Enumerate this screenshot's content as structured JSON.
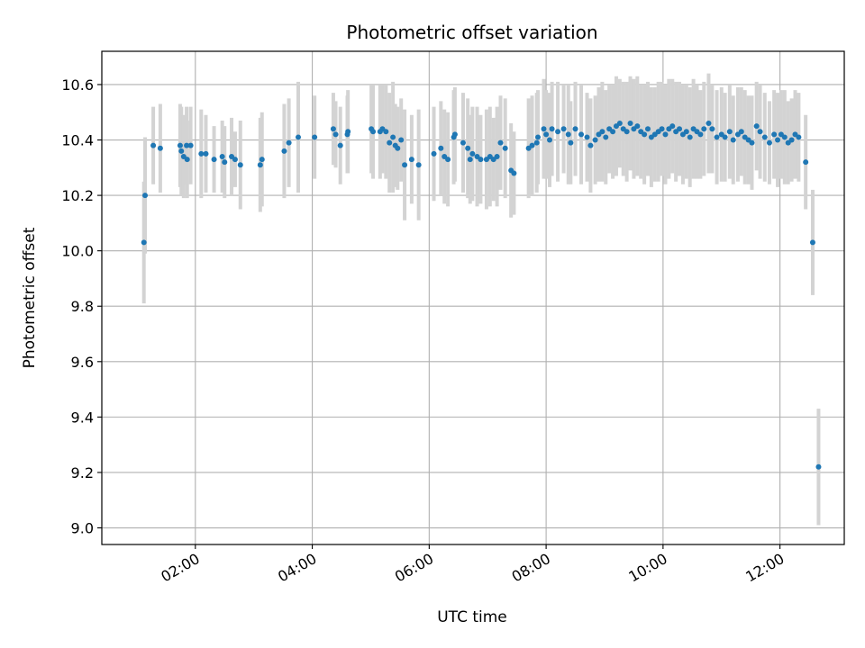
{
  "chart_data": {
    "type": "scatter",
    "title": "Photometric offset variation",
    "xlabel": "UTC time",
    "ylabel": "Photometric offset",
    "x_unit": "hours UTC",
    "xlim": [
      0.4,
      13.1
    ],
    "ylim": [
      8.94,
      10.72
    ],
    "x_ticks": [
      2,
      4,
      6,
      8,
      10,
      12
    ],
    "x_tick_labels": [
      "02:00",
      "04:00",
      "06:00",
      "08:00",
      "10:00",
      "12:00"
    ],
    "y_ticks": [
      9.0,
      9.2,
      9.4,
      9.6,
      9.8,
      10.0,
      10.2,
      10.4,
      10.6
    ],
    "y_tick_labels": [
      "9.0",
      "9.2",
      "9.4",
      "9.6",
      "9.8",
      "10.0",
      "10.2",
      "10.4",
      "10.6"
    ],
    "grid": true,
    "colors": {
      "marker": "#1f77b4",
      "errorbar": "#d3d3d3",
      "grid": "#b0b0b0"
    },
    "series": [
      {
        "points": [
          [
            1.12,
            10.03,
            0.22
          ],
          [
            1.14,
            10.2,
            0.21
          ],
          [
            1.28,
            10.38,
            0.14
          ],
          [
            1.4,
            10.37,
            0.16
          ],
          [
            1.74,
            10.38,
            0.15
          ],
          [
            1.76,
            10.36,
            0.16
          ],
          [
            1.8,
            10.34,
            0.15
          ],
          [
            1.85,
            10.38,
            0.14
          ],
          [
            1.86,
            10.33,
            0.14
          ],
          [
            1.92,
            10.38,
            0.14
          ],
          [
            2.1,
            10.35,
            0.16
          ],
          [
            2.18,
            10.35,
            0.14
          ],
          [
            2.32,
            10.33,
            0.12
          ],
          [
            2.46,
            10.34,
            0.13
          ],
          [
            2.5,
            10.32,
            0.13
          ],
          [
            2.62,
            10.34,
            0.14
          ],
          [
            2.68,
            10.33,
            0.1
          ],
          [
            2.77,
            10.31,
            0.16
          ],
          [
            3.11,
            10.31,
            0.17
          ],
          [
            3.14,
            10.33,
            0.17
          ],
          [
            3.52,
            10.36,
            0.17
          ],
          [
            3.6,
            10.39,
            0.16
          ],
          [
            3.76,
            10.41,
            0.2
          ],
          [
            4.04,
            10.41,
            0.15
          ],
          [
            4.36,
            10.44,
            0.13
          ],
          [
            4.4,
            10.42,
            0.12
          ],
          [
            4.48,
            10.38,
            0.14
          ],
          [
            4.6,
            10.42,
            0.14
          ],
          [
            4.61,
            10.43,
            0.15
          ],
          [
            5.01,
            10.44,
            0.16
          ],
          [
            5.04,
            10.43,
            0.17
          ],
          [
            5.16,
            10.43,
            0.17
          ],
          [
            5.2,
            10.44,
            0.16
          ],
          [
            5.26,
            10.43,
            0.17
          ],
          [
            5.32,
            10.39,
            0.18
          ],
          [
            5.38,
            10.41,
            0.2
          ],
          [
            5.42,
            10.38,
            0.15
          ],
          [
            5.46,
            10.37,
            0.15
          ],
          [
            5.52,
            10.4,
            0.15
          ],
          [
            5.58,
            10.31,
            0.2
          ],
          [
            5.7,
            10.33,
            0.16
          ],
          [
            5.82,
            10.31,
            0.2
          ],
          [
            6.08,
            10.35,
            0.17
          ],
          [
            6.2,
            10.37,
            0.17
          ],
          [
            6.26,
            10.34,
            0.17
          ],
          [
            6.32,
            10.33,
            0.17
          ],
          [
            6.42,
            10.41,
            0.17
          ],
          [
            6.44,
            10.42,
            0.17
          ],
          [
            6.58,
            10.39,
            0.18
          ],
          [
            6.66,
            10.37,
            0.18
          ],
          [
            6.7,
            10.33,
            0.16
          ],
          [
            6.74,
            10.35,
            0.17
          ],
          [
            6.82,
            10.34,
            0.18
          ],
          [
            6.88,
            10.33,
            0.16
          ],
          [
            6.98,
            10.33,
            0.18
          ],
          [
            7.04,
            10.34,
            0.18
          ],
          [
            7.1,
            10.33,
            0.15
          ],
          [
            7.16,
            10.34,
            0.18
          ],
          [
            7.22,
            10.39,
            0.17
          ],
          [
            7.3,
            10.37,
            0.18
          ],
          [
            7.4,
            10.29,
            0.17
          ],
          [
            7.45,
            10.28,
            0.15
          ],
          [
            7.7,
            10.37,
            0.18
          ],
          [
            7.76,
            10.38,
            0.18
          ],
          [
            7.84,
            10.39,
            0.18
          ],
          [
            7.86,
            10.41,
            0.17
          ],
          [
            7.96,
            10.44,
            0.18
          ],
          [
            8.0,
            10.42,
            0.16
          ],
          [
            8.06,
            10.4,
            0.17
          ],
          [
            8.1,
            10.44,
            0.17
          ],
          [
            8.2,
            10.43,
            0.18
          ],
          [
            8.3,
            10.44,
            0.16
          ],
          [
            8.38,
            10.42,
            0.18
          ],
          [
            8.42,
            10.39,
            0.15
          ],
          [
            8.5,
            10.44,
            0.17
          ],
          [
            8.6,
            10.42,
            0.18
          ],
          [
            8.7,
            10.41,
            0.16
          ],
          [
            8.76,
            10.38,
            0.17
          ],
          [
            8.84,
            10.4,
            0.16
          ],
          [
            8.9,
            10.42,
            0.17
          ],
          [
            8.96,
            10.43,
            0.18
          ],
          [
            9.02,
            10.41,
            0.17
          ],
          [
            9.08,
            10.44,
            0.16
          ],
          [
            9.14,
            10.43,
            0.17
          ],
          [
            9.2,
            10.45,
            0.18
          ],
          [
            9.26,
            10.46,
            0.16
          ],
          [
            9.32,
            10.44,
            0.17
          ],
          [
            9.38,
            10.43,
            0.18
          ],
          [
            9.44,
            10.46,
            0.17
          ],
          [
            9.5,
            10.44,
            0.18
          ],
          [
            9.56,
            10.45,
            0.18
          ],
          [
            9.62,
            10.43,
            0.17
          ],
          [
            9.68,
            10.42,
            0.18
          ],
          [
            9.74,
            10.44,
            0.17
          ],
          [
            9.8,
            10.41,
            0.18
          ],
          [
            9.86,
            10.42,
            0.17
          ],
          [
            9.92,
            10.43,
            0.18
          ],
          [
            9.98,
            10.44,
            0.17
          ],
          [
            10.04,
            10.42,
            0.18
          ],
          [
            10.1,
            10.44,
            0.18
          ],
          [
            10.16,
            10.45,
            0.17
          ],
          [
            10.22,
            10.43,
            0.18
          ],
          [
            10.28,
            10.44,
            0.17
          ],
          [
            10.34,
            10.42,
            0.18
          ],
          [
            10.4,
            10.43,
            0.17
          ],
          [
            10.46,
            10.41,
            0.18
          ],
          [
            10.52,
            10.44,
            0.18
          ],
          [
            10.58,
            10.43,
            0.17
          ],
          [
            10.64,
            10.42,
            0.16
          ],
          [
            10.7,
            10.44,
            0.17
          ],
          [
            10.78,
            10.46,
            0.18
          ],
          [
            10.84,
            10.44,
            0.16
          ],
          [
            10.92,
            10.41,
            0.17
          ],
          [
            11.0,
            10.42,
            0.17
          ],
          [
            11.06,
            10.41,
            0.16
          ],
          [
            11.14,
            10.43,
            0.17
          ],
          [
            11.2,
            10.4,
            0.16
          ],
          [
            11.28,
            10.42,
            0.17
          ],
          [
            11.34,
            10.43,
            0.16
          ],
          [
            11.4,
            10.41,
            0.17
          ],
          [
            11.46,
            10.4,
            0.16
          ],
          [
            11.52,
            10.39,
            0.17
          ],
          [
            11.6,
            10.45,
            0.16
          ],
          [
            11.66,
            10.43,
            0.17
          ],
          [
            11.74,
            10.41,
            0.16
          ],
          [
            11.82,
            10.39,
            0.15
          ],
          [
            11.9,
            10.42,
            0.16
          ],
          [
            11.96,
            10.4,
            0.17
          ],
          [
            12.02,
            10.42,
            0.16
          ],
          [
            12.08,
            10.41,
            0.17
          ],
          [
            12.14,
            10.39,
            0.15
          ],
          [
            12.2,
            10.4,
            0.15
          ],
          [
            12.26,
            10.42,
            0.16
          ],
          [
            12.32,
            10.41,
            0.16
          ],
          [
            12.44,
            10.32,
            0.17
          ],
          [
            12.56,
            10.03,
            0.19
          ],
          [
            12.66,
            9.22,
            0.21
          ]
        ]
      }
    ]
  }
}
